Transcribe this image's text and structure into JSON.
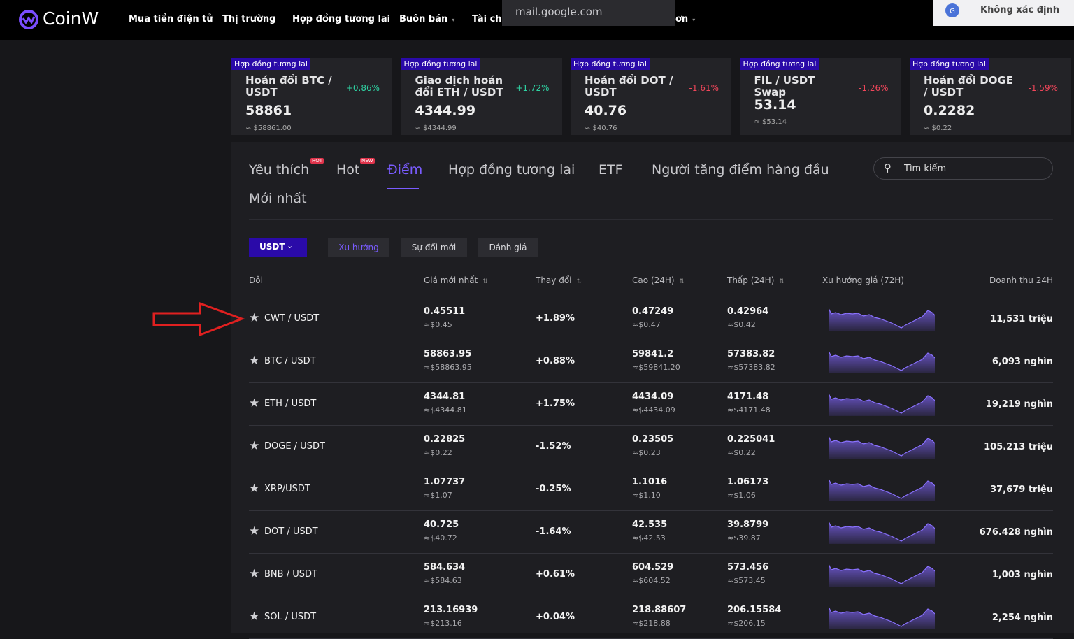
{
  "nav": {
    "logo": "CoinW",
    "items": [
      "Mua tiền điện tử",
      "Thị trường",
      "Hợp đồng tương lai",
      "Buôn bán",
      "Tài chá",
      "ơn"
    ],
    "popup": "mail.google.com",
    "status": "Không xác định"
  },
  "tickers": [
    {
      "tag": "Hợp đồng tương lai",
      "name": "Hoán đổi BTC / USDT",
      "change": "+0.86%",
      "price": "58861",
      "usd": "≈ $58861.00"
    },
    {
      "tag": "Hợp đồng tương lai",
      "name": "Giao dịch hoán đổi ETH / USDT",
      "change": "+1.72%",
      "price": "4344.99",
      "usd": "≈ $4344.99"
    },
    {
      "tag": "Hợp đồng tương lai",
      "name": "Hoán đổi DOT / USDT",
      "change": "-1.61%",
      "price": "40.76",
      "usd": "≈ $40.76"
    },
    {
      "tag": "Hợp đồng tương lai",
      "name": "FIL / USDT Swap",
      "change": "-1.26%",
      "price": "53.14",
      "usd": "≈ $53.14"
    },
    {
      "tag": "Hợp đồng tương lai",
      "name": "Hoán đổi DOGE / USDT",
      "change": "-1.59%",
      "price": "0.2282",
      "usd": "≈ $0.22"
    }
  ],
  "tabs": [
    {
      "label": "Yêu thích",
      "badge": "HOT"
    },
    {
      "label": "Hot",
      "badge": "NEW"
    },
    {
      "label": "Điểm",
      "active": true
    },
    {
      "label": "Hợp đồng tương lai"
    },
    {
      "label": "ETF"
    },
    {
      "label": "Người tăng điểm hàng đầu"
    },
    {
      "label": "Mới nhất"
    }
  ],
  "search": "Tìm kiếm",
  "filters": {
    "currency": "USDT",
    "options": [
      "Xu hướng",
      "Sự đổi mới",
      "Đánh giá"
    ],
    "active": 0
  },
  "table": {
    "headers": [
      "Đôi",
      "Giá mới nhất",
      "Thay đổi",
      "Cao (24H)",
      "Thấp (24H)",
      "Xu hướng giá (72H)",
      "Doanh thu 24H"
    ],
    "rows": [
      {
        "pair": "CWT / USDT",
        "price": "0.45511",
        "price_usd": "≈$0.45",
        "change": "+1.89%",
        "high": "0.47249",
        "high_usd": "≈$0.47",
        "low": "0.42964",
        "low_usd": "≈$0.42",
        "volume": "11,531 triệu"
      },
      {
        "pair": "BTC / USDT",
        "price": "58863.95",
        "price_usd": "≈$58863.95",
        "change": "+0.88%",
        "high": "59841.2",
        "high_usd": "≈$59841.20",
        "low": "57383.82",
        "low_usd": "≈$57383.82",
        "volume": "6,093 nghìn"
      },
      {
        "pair": "ETH / USDT",
        "price": "4344.81",
        "price_usd": "≈$4344.81",
        "change": "+1.75%",
        "high": "4434.09",
        "high_usd": "≈$4434.09",
        "low": "4171.48",
        "low_usd": "≈$4171.48",
        "volume": "19,219 nghìn"
      },
      {
        "pair": "DOGE / USDT",
        "price": "0.22825",
        "price_usd": "≈$0.22",
        "change": "-1.52%",
        "high": "0.23505",
        "high_usd": "≈$0.23",
        "low": "0.225041",
        "low_usd": "≈$0.22",
        "volume": "105.213 triệu"
      },
      {
        "pair": "XRP/USDT",
        "price": "1.07737",
        "price_usd": "≈$1.07",
        "change": "-0.25%",
        "high": "1.1016",
        "high_usd": "≈$1.10",
        "low": "1.06173",
        "low_usd": "≈$1.06",
        "volume": "37,679 triệu"
      },
      {
        "pair": "DOT / USDT",
        "price": "40.725",
        "price_usd": "≈$40.72",
        "change": "-1.64%",
        "high": "42.535",
        "high_usd": "≈$42.53",
        "low": "39.8799",
        "low_usd": "≈$39.87",
        "volume": "676.428 nghìn"
      },
      {
        "pair": "BNB / USDT",
        "price": "584.634",
        "price_usd": "≈$584.63",
        "change": "+0.61%",
        "high": "604.529",
        "high_usd": "≈$604.52",
        "low": "573.456",
        "low_usd": "≈$573.45",
        "volume": "1,003 nghìn"
      },
      {
        "pair": "SOL / USDT",
        "price": "213.16939",
        "price_usd": "≈$213.16",
        "change": "+0.04%",
        "high": "218.88607",
        "high_usd": "≈$218.88",
        "low": "206.15584",
        "low_usd": "≈$206.15",
        "volume": "2,254 nghìn"
      }
    ]
  }
}
